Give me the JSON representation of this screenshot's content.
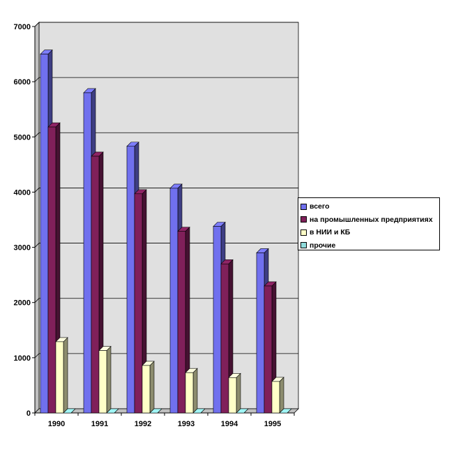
{
  "chart_data": {
    "type": "bar",
    "categories": [
      "1990",
      "1991",
      "1992",
      "1993",
      "1994",
      "1995"
    ],
    "series": [
      {
        "name": "всего",
        "values": [
          6500,
          5800,
          4830,
          4070,
          3380,
          2900
        ]
      },
      {
        "name": "на промышленных предприятиях",
        "values": [
          5180,
          4650,
          3970,
          3290,
          2700,
          2300
        ]
      },
      {
        "name": "в НИИ и КБ",
        "values": [
          1290,
          1130,
          860,
          730,
          640,
          570
        ]
      },
      {
        "name": "прочие",
        "values": [
          0,
          0,
          0,
          0,
          0,
          0
        ]
      }
    ],
    "colors": [
      "#7070ee",
      "#80205a",
      "#ffffc8",
      "#90dcdc"
    ],
    "ylim": [
      0,
      7000
    ],
    "yticks": [
      "0",
      "1000",
      "2000",
      "3000",
      "4000",
      "5000",
      "6000",
      "7000"
    ],
    "grid": true,
    "legend_position": "right"
  }
}
